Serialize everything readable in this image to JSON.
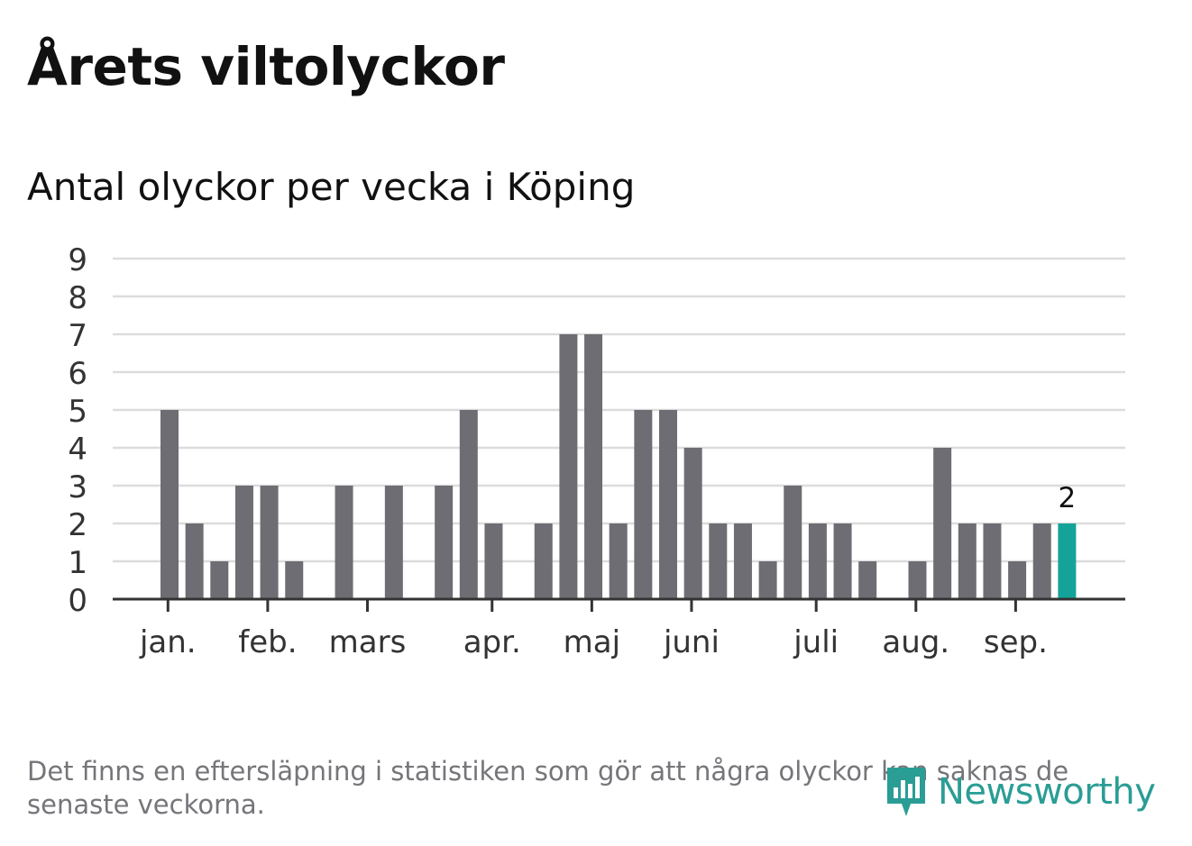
{
  "header": {
    "title": "Årets viltolyckor",
    "subtitle": "Antal olyckor per vecka i Köping"
  },
  "footer": {
    "note": "Det finns en eftersläpning i statistiken som gör att några olyckor kan saknas de senaste veckorna.",
    "brand": "Newsworthy"
  },
  "colors": {
    "bar": "#6e6d73",
    "highlight": "#15a399",
    "grid": "#dcdcdc",
    "axis": "#333333",
    "text": "#333333"
  },
  "chart_data": {
    "type": "bar",
    "title": "Antal olyckor per vecka i Köping",
    "xlabel": "",
    "ylabel": "",
    "ylim": [
      0,
      9
    ],
    "yticks": [
      0,
      1,
      2,
      3,
      4,
      5,
      6,
      7,
      8,
      9
    ],
    "grid": true,
    "legend": "none",
    "values": [
      5,
      2,
      1,
      3,
      3,
      1,
      0,
      3,
      0,
      3,
      0,
      3,
      5,
      2,
      0,
      2,
      7,
      7,
      2,
      5,
      5,
      4,
      2,
      2,
      1,
      3,
      2,
      2,
      1,
      0,
      1,
      4,
      2,
      2,
      1,
      2,
      2
    ],
    "highlight_index": 36,
    "highlight_label": "2",
    "month_ticks": [
      {
        "label": "jan.",
        "week_index": 0.3
      },
      {
        "label": "feb.",
        "week_index": 4.3
      },
      {
        "label": "mars",
        "week_index": 8.3
      },
      {
        "label": "apr.",
        "week_index": 13.3
      },
      {
        "label": "maj",
        "week_index": 17.3
      },
      {
        "label": "juni",
        "week_index": 21.3
      },
      {
        "label": "juli",
        "week_index": 26.3
      },
      {
        "label": "aug.",
        "week_index": 30.3
      },
      {
        "label": "sep.",
        "week_index": 34.3
      }
    ]
  }
}
